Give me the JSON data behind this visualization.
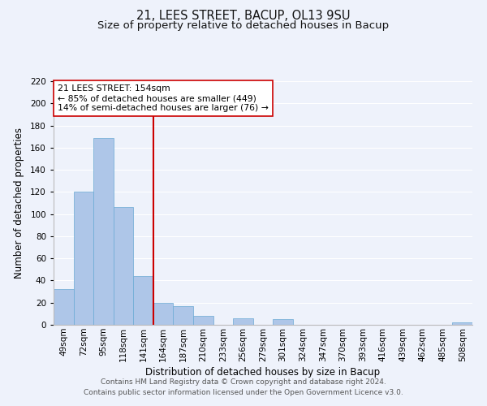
{
  "title": "21, LEES STREET, BACUP, OL13 9SU",
  "subtitle": "Size of property relative to detached houses in Bacup",
  "xlabel": "Distribution of detached houses by size in Bacup",
  "ylabel": "Number of detached properties",
  "bar_labels": [
    "49sqm",
    "72sqm",
    "95sqm",
    "118sqm",
    "141sqm",
    "164sqm",
    "187sqm",
    "210sqm",
    "233sqm",
    "256sqm",
    "279sqm",
    "301sqm",
    "324sqm",
    "347sqm",
    "370sqm",
    "393sqm",
    "416sqm",
    "439sqm",
    "462sqm",
    "485sqm",
    "508sqm"
  ],
  "bar_values": [
    32,
    120,
    169,
    106,
    44,
    20,
    17,
    8,
    0,
    6,
    0,
    5,
    0,
    0,
    0,
    0,
    0,
    0,
    0,
    0,
    2
  ],
  "bar_color": "#aec6e8",
  "bar_edge_color": "#6aaad4",
  "ylim": [
    0,
    220
  ],
  "yticks": [
    0,
    20,
    40,
    60,
    80,
    100,
    120,
    140,
    160,
    180,
    200,
    220
  ],
  "reference_line_color": "#cc0000",
  "annotation_box_text_line1": "21 LEES STREET: 154sqm",
  "annotation_box_text_line2": "← 85% of detached houses are smaller (449)",
  "annotation_box_text_line3": "14% of semi-detached houses are larger (76) →",
  "annotation_box_edge_color": "#cc0000",
  "annotation_box_face_color": "#ffffff",
  "footer_line1": "Contains HM Land Registry data © Crown copyright and database right 2024.",
  "footer_line2": "Contains public sector information licensed under the Open Government Licence v3.0.",
  "background_color": "#eef2fb",
  "grid_color": "#ffffff",
  "title_fontsize": 10.5,
  "subtitle_fontsize": 9.5,
  "axis_label_fontsize": 8.5,
  "tick_fontsize": 7.5,
  "annotation_fontsize": 7.8,
  "footer_fontsize": 6.5
}
